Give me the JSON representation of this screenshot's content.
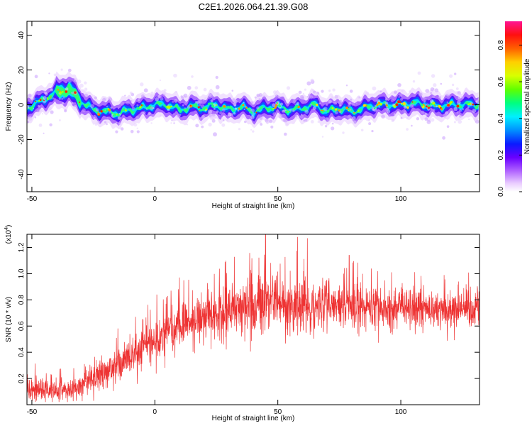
{
  "title": "C2E1.2026.064.21.39.G08",
  "colors": {
    "snr_line": "#ee3333",
    "ridge_core": "#ff2200",
    "spectral_scale": [
      "#ffffff",
      "#f0d8ff",
      "#c27aff",
      "#8a2be2",
      "#4b00ff",
      "#0050ff",
      "#00b0ff",
      "#00ffe0",
      "#20ff60",
      "#a0ff00",
      "#ffff00",
      "#ffa000",
      "#ff2020",
      "#ff1493"
    ]
  },
  "chart_data": [
    {
      "type": "heatmap",
      "xlabel": "Height of straight line (km)",
      "ylabel": "Frequency (Hz)",
      "xlim": [
        -52,
        132
      ],
      "ylim": [
        -50,
        48
      ],
      "xticks": [
        -50,
        0,
        50,
        100
      ],
      "yticks": [
        -40,
        -20,
        0,
        20,
        40
      ],
      "colorbar": {
        "label": "Normalized spectral amplitude",
        "range": [
          0,
          0.93
        ],
        "ticks": [
          "0.0",
          "0.2",
          "0.4",
          "0.6",
          "0.8"
        ],
        "tick_values": [
          0,
          0.2,
          0.4,
          0.6,
          0.8
        ]
      },
      "ridge": {
        "x": [
          -52,
          -45,
          -40,
          -35,
          -30,
          -25,
          -20,
          -15,
          -10,
          -5,
          0,
          5,
          10,
          15,
          20,
          25,
          30,
          35,
          40,
          45,
          50,
          55,
          60,
          65,
          70,
          75,
          80,
          85,
          90,
          95,
          100,
          105,
          110,
          115,
          120,
          125,
          132
        ],
        "y": [
          -2,
          3,
          7,
          9,
          2,
          -3,
          -4,
          -5,
          -3,
          -2,
          0,
          0,
          -3,
          -1,
          -2,
          0,
          -3,
          -1,
          -4,
          -2,
          -1,
          -3,
          -2,
          0,
          -4,
          -2,
          -4,
          -2,
          0,
          0,
          0,
          1,
          0,
          -1,
          0,
          0,
          0
        ]
      }
    },
    {
      "type": "line",
      "xlabel": "Height of straight line (km)",
      "ylabel": "SNR (10 * v/v)",
      "y_multiplier": "(x10",
      "y_multiplier_exp": "4",
      "y_multiplier_close": ")",
      "xlim": [
        -52,
        132
      ],
      "ylim": [
        0,
        1.3
      ],
      "xticks": [
        -50,
        0,
        50,
        100
      ],
      "yticks": [
        0.2,
        0.4,
        0.6,
        0.8,
        1.0,
        1.2
      ],
      "ytick_labels": [
        "0.2",
        "0.4",
        "0.6",
        "0.8",
        "1.0",
        "1.2"
      ],
      "series": [
        {
          "trend_x": [
            -52,
            -45,
            -40,
            -35,
            -30,
            -25,
            -20,
            -15,
            -10,
            -5,
            0,
            5,
            10,
            15,
            20,
            25,
            30,
            35,
            40,
            45,
            50,
            55,
            60,
            65,
            70,
            75,
            80,
            85,
            90,
            95,
            100,
            105,
            110,
            115,
            120,
            125,
            132
          ],
          "trend_y": [
            0.12,
            0.12,
            0.1,
            0.11,
            0.14,
            0.2,
            0.25,
            0.3,
            0.36,
            0.42,
            0.5,
            0.56,
            0.6,
            0.62,
            0.66,
            0.7,
            0.72,
            0.74,
            0.76,
            0.77,
            0.77,
            0.76,
            0.76,
            0.75,
            0.76,
            0.75,
            0.75,
            0.74,
            0.74,
            0.73,
            0.73,
            0.74,
            0.73,
            0.73,
            0.72,
            0.73,
            0.73
          ],
          "spread_y": [
            0.08,
            0.08,
            0.07,
            0.07,
            0.08,
            0.1,
            0.1,
            0.12,
            0.12,
            0.13,
            0.14,
            0.14,
            0.15,
            0.14,
            0.15,
            0.16,
            0.16,
            0.17,
            0.18,
            0.18,
            0.18,
            0.17,
            0.17,
            0.16,
            0.16,
            0.15,
            0.15,
            0.14,
            0.14,
            0.13,
            0.13,
            0.13,
            0.12,
            0.12,
            0.12,
            0.12,
            0.12
          ],
          "peaks": [
            {
              "x": 45,
              "y": 1.3
            },
            {
              "x": 58,
              "y": 1.28
            },
            {
              "x": 62,
              "y": 1.27
            },
            {
              "x": 79,
              "y": 1.14
            },
            {
              "x": 10,
              "y": 0.97
            }
          ]
        }
      ]
    }
  ]
}
